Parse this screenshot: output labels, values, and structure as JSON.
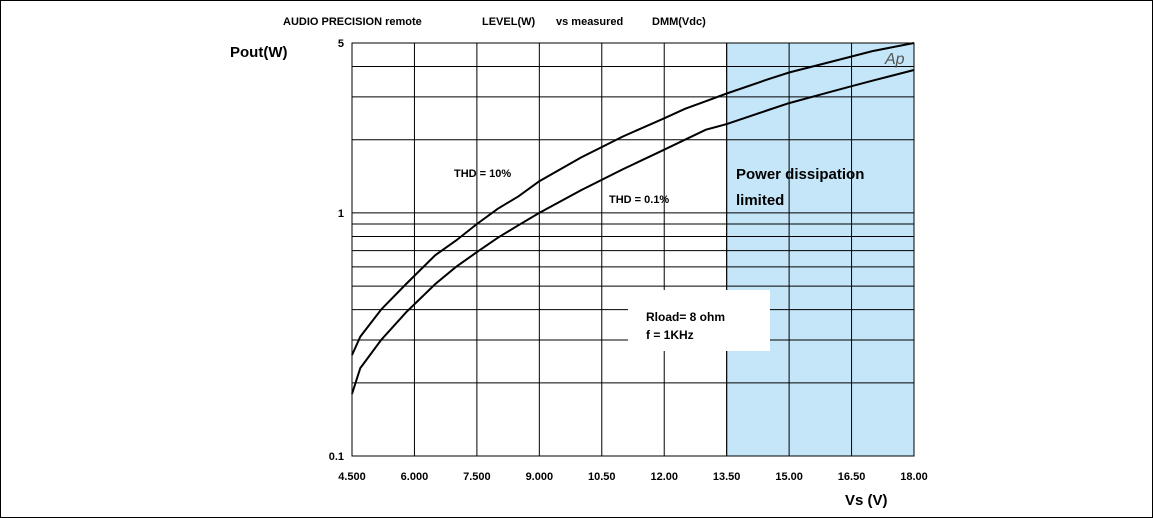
{
  "header": {
    "title_part1": "AUDIO PRECISION remote",
    "title_part2": "LEVEL(W)",
    "title_part3": "vs measured",
    "title_part4": "DMM(Vdc)"
  },
  "chart_data": {
    "type": "line",
    "title": "AUDIO PRECISION remote LEVEL(W) vs measured DMM(Vdc)",
    "xlabel": "Vs (V)",
    "ylabel": "Pout(W)",
    "xlim": [
      4.5,
      18.0
    ],
    "ylim": [
      0.1,
      5
    ],
    "yscale": "log",
    "grid": true,
    "x_tick_labels": [
      "4.500",
      "6.000",
      "7.500",
      "9.000",
      "10.50",
      "12.00",
      "13.50",
      "15.00",
      "16.50",
      "18.00"
    ],
    "y_tick_labels": [
      "0.1",
      "1",
      "5"
    ],
    "series": [
      {
        "name": "THD = 10%",
        "x": [
          4.5,
          4.7,
          5.2,
          5.8,
          6.5,
          7.0,
          7.5,
          8.0,
          8.5,
          9.0,
          10.0,
          11.0,
          12.0,
          12.5,
          13.0,
          13.5,
          14.5,
          15.0,
          16.0,
          16.5,
          17.0,
          18.0
        ],
        "y": [
          0.26,
          0.31,
          0.4,
          0.51,
          0.67,
          0.77,
          0.9,
          1.04,
          1.17,
          1.35,
          1.69,
          2.06,
          2.45,
          2.68,
          2.88,
          3.1,
          3.55,
          3.78,
          4.18,
          4.4,
          4.63,
          5.0
        ]
      },
      {
        "name": "THD = 0.1%",
        "x": [
          4.5,
          4.7,
          5.2,
          5.8,
          6.5,
          7.0,
          7.5,
          8.0,
          8.5,
          9.0,
          10.0,
          11.0,
          12.0,
          12.5,
          13.0,
          13.5,
          14.5,
          15.0,
          16.0,
          16.5,
          17.0,
          18.0
        ],
        "y": [
          0.18,
          0.23,
          0.3,
          0.39,
          0.51,
          0.6,
          0.69,
          0.79,
          0.89,
          1.0,
          1.24,
          1.51,
          1.82,
          2.0,
          2.2,
          2.32,
          2.65,
          2.83,
          3.15,
          3.32,
          3.5,
          3.87
        ]
      }
    ],
    "shaded_region": {
      "x_from": 13.5,
      "x_to": 18.0,
      "color": "#c5e6f8"
    },
    "annotations": {
      "thd10": "THD = 10%",
      "thd01": "THD = 0.1%",
      "region_line1": "Power dissipation",
      "region_line2": "limited",
      "box_line1": "Rload= 8 ohm",
      "box_line2": "f = 1KHz",
      "logo": "Ap"
    }
  }
}
